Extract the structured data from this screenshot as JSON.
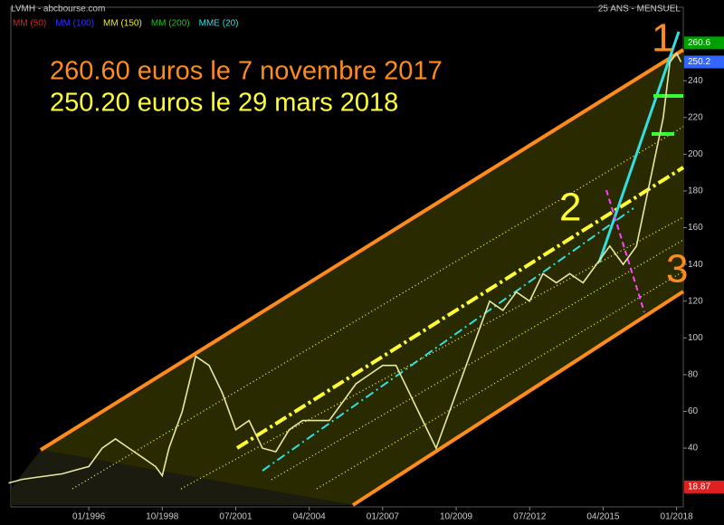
{
  "chart_data": {
    "type": "line",
    "title": "LVMH - abcbourse.com",
    "subtitle": "25 ANS - MENSUEL",
    "indicators": [
      {
        "name": "MM (50)",
        "color": "#e02020"
      },
      {
        "name": "MM (100)",
        "color": "#3030ff"
      },
      {
        "name": "MM (150)",
        "color": "#f0f000"
      },
      {
        "name": "MM (200)",
        "color": "#20c020"
      },
      {
        "name": "MME (20)",
        "color": "#30e0e0"
      }
    ],
    "annotations": [
      {
        "text": "260.60 euros le 7 novembre 2017",
        "color": "#ff8c1a"
      },
      {
        "text": "250.20 euros le 29 mars 2018",
        "color": "#ffff33"
      },
      {
        "text": "1",
        "color": "#ff8c1a"
      },
      {
        "text": "2",
        "color": "#ffff33"
      },
      {
        "text": "3",
        "color": "#ff8c1a"
      }
    ],
    "x": [
      "01/1993",
      "07/1993",
      "01/1994",
      "07/1994",
      "01/1995",
      "07/1995",
      "01/1996",
      "07/1996",
      "01/1997",
      "07/1997",
      "01/1998",
      "07/1998",
      "10/1998",
      "01/1999",
      "07/1999",
      "01/2000",
      "07/2000",
      "01/2001",
      "07/2001",
      "01/2002",
      "07/2002",
      "01/2003",
      "07/2003",
      "01/2004",
      "07/2004",
      "01/2005",
      "07/2005",
      "01/2006",
      "07/2006",
      "01/2007",
      "07/2007",
      "01/2008",
      "07/2008",
      "01/2009",
      "07/2009",
      "01/2010",
      "07/2010",
      "01/2011",
      "07/2011",
      "01/2012",
      "07/2012",
      "01/2013",
      "07/2013",
      "01/2014",
      "07/2014",
      "01/2015",
      "07/2015",
      "01/2016",
      "07/2016",
      "01/2017",
      "07/2017",
      "10/2017",
      "01/2018",
      "03/2018"
    ],
    "series": [
      {
        "name": "LVMH",
        "color": "#e8e8a0",
        "values": [
          21,
          23,
          24,
          25,
          26,
          28,
          30,
          40,
          45,
          40,
          35,
          30,
          25,
          40,
          60,
          90,
          85,
          70,
          50,
          55,
          40,
          38,
          50,
          55,
          55,
          55,
          65,
          75,
          80,
          85,
          85,
          70,
          55,
          40,
          60,
          80,
          100,
          120,
          115,
          125,
          120,
          135,
          130,
          135,
          130,
          140,
          150,
          140,
          150,
          185,
          220,
          250,
          255,
          250.2
        ]
      }
    ],
    "xlim": [
      "02/1993",
      "04/2018"
    ],
    "xticks": [
      "01/1996",
      "10/1998",
      "07/2001",
      "04/2004",
      "01/2007",
      "10/2009",
      "07/2012",
      "04/2015",
      "01/2018"
    ],
    "ylim": [
      8,
      280
    ],
    "yticks": [
      40,
      60,
      80,
      100,
      120,
      140,
      160,
      180,
      200,
      220,
      240
    ],
    "price_markers": [
      {
        "value": 260.6,
        "color": "#00a000"
      },
      {
        "value": 250.2,
        "color": "#3366ff"
      },
      {
        "value": 18.87,
        "color": "#e02020"
      }
    ]
  }
}
